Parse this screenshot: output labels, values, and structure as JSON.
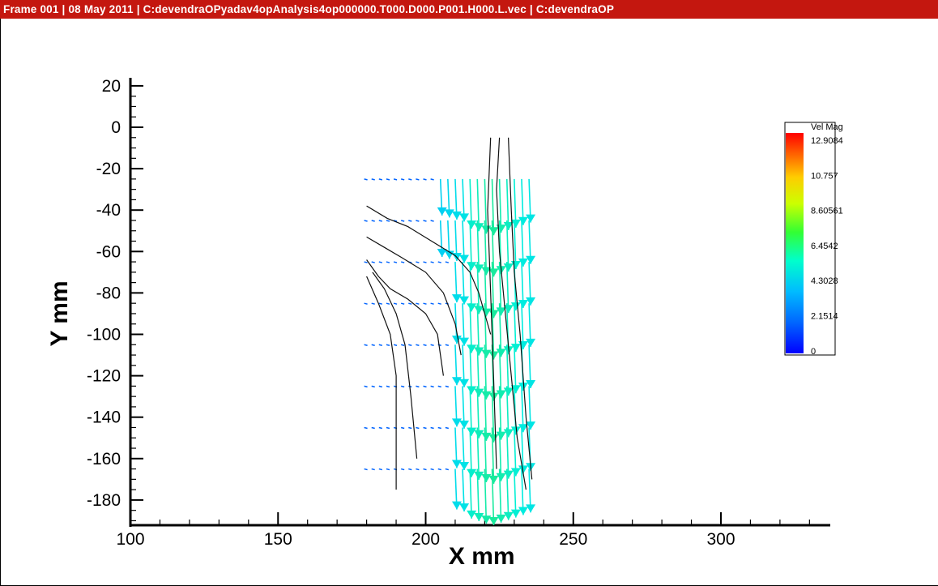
{
  "window": {
    "title": "Frame 001  |  08 May 2011  |  C:devendraOPyadav4opAnalysis4op000000.T000.D000.P001.H000.L.vec | C:devendraOP"
  },
  "chart_data": {
    "type": "vector_field_with_streamlines",
    "xlabel": "X mm",
    "ylabel": "Y mm",
    "xlim": [
      100,
      335
    ],
    "ylim": [
      -190,
      25
    ],
    "xticks": [
      100,
      150,
      200,
      250,
      300
    ],
    "yticks": [
      20,
      0,
      -20,
      -40,
      -60,
      -80,
      -100,
      -120,
      -140,
      -160,
      -180
    ],
    "legend": {
      "title": "Vel Mag",
      "placement": "right",
      "levels": [
        "12.9084",
        "10.757",
        "8.60561",
        "6.4542",
        "4.3028",
        "2.1514",
        "0"
      ],
      "colorscale": [
        "#0000ff",
        "#0099ff",
        "#00ffff",
        "#00ff66",
        "#66ff00",
        "#ffff00",
        "#ff9900",
        "#ff0000"
      ]
    },
    "vector_rows_y": [
      -25,
      -45,
      -65,
      -85,
      -105,
      -125,
      -145,
      -165
    ],
    "vector_x_range": [
      180,
      237
    ],
    "streamlines": [
      {
        "x": [
          180,
          187,
          194,
          202,
          210,
          215,
          218,
          220,
          222
        ],
        "y": [
          -38,
          -44,
          -48,
          -55,
          -62,
          -70,
          -80,
          -90,
          -100
        ]
      },
      {
        "x": [
          180,
          186,
          192,
          200,
          206,
          210,
          212
        ],
        "y": [
          -53,
          -58,
          -63,
          -70,
          -80,
          -95,
          -110
        ]
      },
      {
        "x": [
          180,
          184,
          188,
          194,
          200,
          204,
          206
        ],
        "y": [
          -64,
          -72,
          -78,
          -83,
          -90,
          -100,
          -120
        ]
      },
      {
        "x": [
          182,
          186,
          190,
          193,
          195,
          197
        ],
        "y": [
          -70,
          -78,
          -90,
          -105,
          -130,
          -160
        ]
      },
      {
        "x": [
          180,
          184,
          188,
          190,
          190,
          190
        ],
        "y": [
          -72,
          -85,
          -100,
          -120,
          -150,
          -175
        ]
      },
      {
        "x": [
          225,
          224,
          225,
          227,
          229,
          231,
          234
        ],
        "y": [
          -5,
          -30,
          -60,
          -90,
          -120,
          -150,
          -175
        ]
      },
      {
        "x": [
          228,
          229,
          230,
          232,
          234,
          236
        ],
        "y": [
          -5,
          -40,
          -70,
          -100,
          -140,
          -170
        ]
      },
      {
        "x": [
          222,
          221,
          222,
          223,
          224
        ],
        "y": [
          -5,
          -40,
          -80,
          -120,
          -165
        ]
      }
    ]
  }
}
